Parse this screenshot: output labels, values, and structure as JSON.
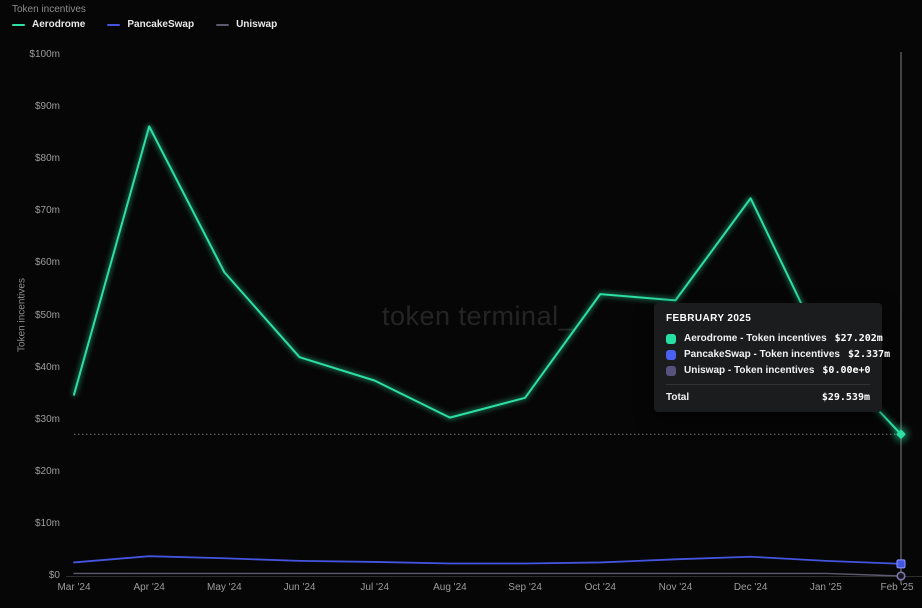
{
  "header": {
    "title": "Token incentives"
  },
  "legend": {
    "items": [
      {
        "label": "Aerodrome",
        "color": "#2ddfa5"
      },
      {
        "label": "PancakeSwap",
        "color": "#4355e0"
      },
      {
        "label": "Uniswap",
        "color": "#5c5a6e"
      }
    ]
  },
  "watermark": {
    "text": "token terminal_"
  },
  "chart_data": {
    "type": "line",
    "title": "Token incentives",
    "ylabel": "Token incentives",
    "ylim": [
      0,
      100
    ],
    "grid": false,
    "legend_position": "top-left",
    "categories": [
      "Mar '24",
      "Apr '24",
      "May '24",
      "Jun '24",
      "Jul '24",
      "Aug '24",
      "Sep '24",
      "Oct '24",
      "Nov '24",
      "Dec '24",
      "Jan '25",
      "Feb '25"
    ],
    "y_ticks": [
      {
        "label": "$100m",
        "value": 100
      },
      {
        "label": "$90m",
        "value": 90
      },
      {
        "label": "$80m",
        "value": 80
      },
      {
        "label": "$70m",
        "value": 70
      },
      {
        "label": "$60m",
        "value": 60
      },
      {
        "label": "$50m",
        "value": 50
      },
      {
        "label": "$40m",
        "value": 40
      },
      {
        "label": "$30m",
        "value": 30
      },
      {
        "label": "$20m",
        "value": 20
      },
      {
        "label": "$10m",
        "value": 10
      },
      {
        "label": "$0",
        "value": 0
      }
    ],
    "series": [
      {
        "name": "Aerodrome",
        "color": "#2ddfa5",
        "marker": "diamond",
        "glow": true,
        "width": 2,
        "values": [
          34.8,
          86.3,
          58.3,
          42,
          37.5,
          30.4,
          34.2,
          54.1,
          52.9,
          72.5,
          42.5,
          27.202
        ]
      },
      {
        "name": "PancakeSwap",
        "color": "#4355e0",
        "marker": "square",
        "glow": false,
        "width": 1.8,
        "values": [
          2.6,
          3.8,
          3.4,
          2.9,
          2.7,
          2.4,
          2.4,
          2.6,
          3.2,
          3.7,
          2.9,
          2.337
        ]
      },
      {
        "name": "Uniswap",
        "color": "#5c5a6e",
        "marker": "circle",
        "glow": false,
        "width": 1.4,
        "values": [
          0.5,
          0.5,
          0.5,
          0.5,
          0.5,
          0.5,
          0.5,
          0.5,
          0.5,
          0.5,
          0.5,
          0
        ]
      }
    ],
    "reference_value": 27.202,
    "hover_index": 11
  },
  "tooltip": {
    "title": "FEBRUARY 2025",
    "rows": [
      {
        "label": "Aerodrome - Token incentives",
        "value": "$27.202m",
        "color": "#27e0a3"
      },
      {
        "label": "PancakeSwap - Token incentives",
        "value": "$2.337m",
        "color": "#4b61f2"
      },
      {
        "label": "Uniswap - Token incentives",
        "value": "$0.00e+0",
        "color": "#56527d"
      }
    ],
    "total_label": "Total",
    "total_value": "$29.539m"
  }
}
